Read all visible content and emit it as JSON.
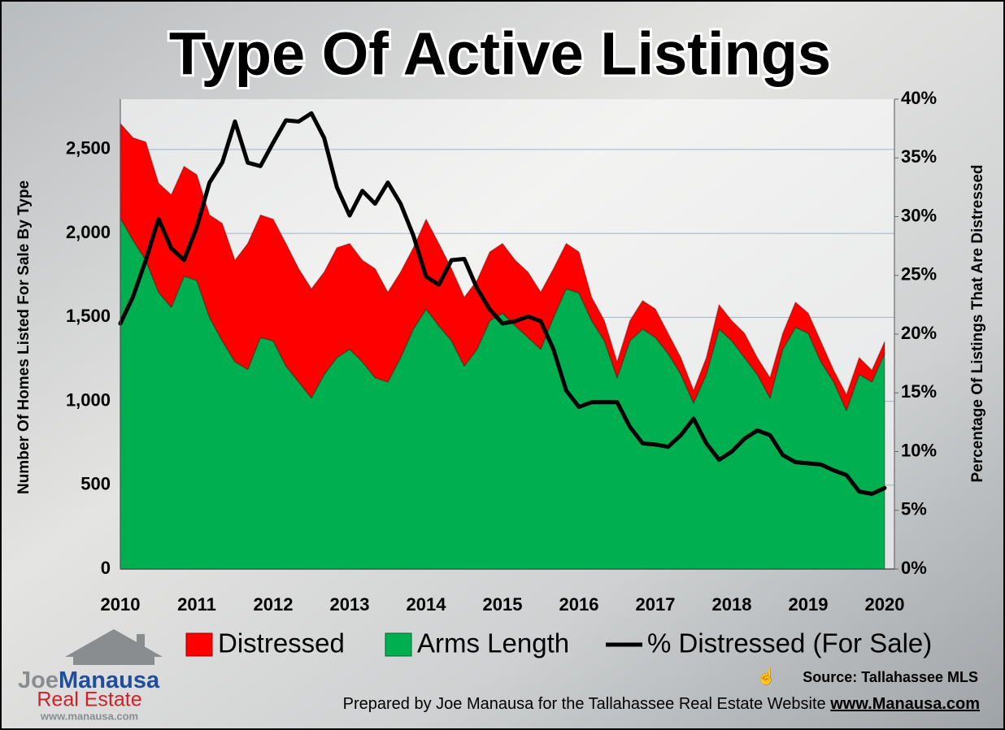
{
  "chart_data": {
    "type": "stacked-area",
    "title": "Type Of Active Listings",
    "y_label": "Number Of Homes Listed For Sale By Type",
    "y2_label": "Percentage Of Listings That Are Distressed",
    "categories": [
      "2010",
      null,
      null,
      null,
      null,
      null,
      "2011",
      null,
      null,
      null,
      null,
      null,
      "2012",
      null,
      null,
      null,
      null,
      null,
      "2013",
      null,
      null,
      null,
      null,
      null,
      "2014",
      null,
      null,
      null,
      null,
      null,
      "2015",
      null,
      null,
      null,
      null,
      null,
      "2016",
      null,
      null,
      null,
      null,
      null,
      "2017",
      null,
      null,
      null,
      null,
      null,
      "2018",
      null,
      null,
      null,
      null,
      null,
      "2019",
      null,
      null,
      null,
      null,
      null,
      "2020"
    ],
    "series": [
      {
        "name": "Distressed",
        "color": "#ff0000",
        "values": [
          562,
          610,
          705,
          650,
          670,
          655,
          630,
          610,
          700,
          605,
          750,
          730,
          725,
          730,
          675,
          650,
          610,
          655,
          630,
          605,
          650,
          535,
          510,
          485,
          535,
          490,
          430,
          410,
          410,
          410,
          415,
          390,
          390,
          340,
          290,
          270,
          245,
          140,
          120,
          95,
          120,
          170,
          170,
          120,
          100,
          75,
          100,
          145,
          120,
          145,
          100,
          120,
          95,
          150,
          120,
          120,
          70,
          95,
          100,
          70,
          70
        ]
      },
      {
        "name": "Arms Length",
        "color": "#00b050",
        "values": [
          2093,
          1960,
          1840,
          1650,
          1560,
          1745,
          1720,
          1500,
          1360,
          1235,
          1190,
          1380,
          1360,
          1210,
          1115,
          1020,
          1160,
          1260,
          1310,
          1235,
          1140,
          1115,
          1260,
          1430,
          1550,
          1450,
          1360,
          1210,
          1310,
          1480,
          1525,
          1450,
          1380,
          1310,
          1500,
          1670,
          1645,
          1480,
          1360,
          1140,
          1360,
          1430,
          1380,
          1285,
          1160,
          990,
          1160,
          1430,
          1360,
          1260,
          1160,
          1020,
          1310,
          1440,
          1405,
          1235,
          1115,
          945,
          1160,
          1115,
          1285
        ]
      },
      {
        "name": "% Distressed (For Sale)",
        "color": "#000000",
        "axis": "y2",
        "values": [
          20.9,
          23.2,
          26.3,
          29.8,
          27.3,
          26.3,
          29.1,
          32.9,
          34.6,
          38.1,
          34.6,
          34.3,
          36.3,
          38.2,
          38.1,
          38.8,
          36.7,
          32.5,
          30.1,
          32.2,
          31.1,
          32.9,
          31.1,
          28.4,
          24.9,
          24.2,
          26.3,
          26.4,
          23.9,
          22.1,
          20.9,
          21.1,
          21.5,
          21.1,
          18.7,
          15.2,
          13.8,
          14.2,
          14.2,
          14.2,
          12.1,
          10.7,
          10.6,
          10.4,
          11.4,
          12.8,
          10.7,
          9.3,
          10.0,
          11.1,
          11.8,
          11.4,
          9.7,
          9.1,
          9.0,
          8.9,
          8.4,
          8.0,
          6.6,
          6.4,
          6.9
        ]
      }
    ],
    "stacked": true,
    "ylim": [
      0,
      2800
    ],
    "yticks": [
      0,
      500,
      {
        "value": 1000,
        "label": "1,000"
      },
      {
        "value": 1500,
        "label": "1,500"
      },
      {
        "value": 2000,
        "label": "2,000"
      },
      {
        "value": 2500,
        "label": "2,500"
      }
    ],
    "y2lim": [
      0,
      40
    ],
    "y2ticks": [
      {
        "value": 0,
        "label": "0%"
      },
      {
        "value": 5,
        "label": "5%"
      },
      {
        "value": 10,
        "label": "10%"
      },
      {
        "value": 15,
        "label": "15%"
      },
      {
        "value": 20,
        "label": "20%"
      },
      {
        "value": 25,
        "label": "25%"
      },
      {
        "value": 30,
        "label": "30%"
      },
      {
        "value": 35,
        "label": "35%"
      },
      {
        "value": 40,
        "label": "40%"
      }
    ],
    "grid": true,
    "legend": "bottom",
    "annotations": [
      "Source: Tallahassee MLS",
      "Prepared by Joe Manausa for the Tallahassee Real Estate Website",
      "www.Manausa.com",
      "Joe",
      "Manausa",
      "Real Estate",
      "www.manausa.com"
    ]
  }
}
